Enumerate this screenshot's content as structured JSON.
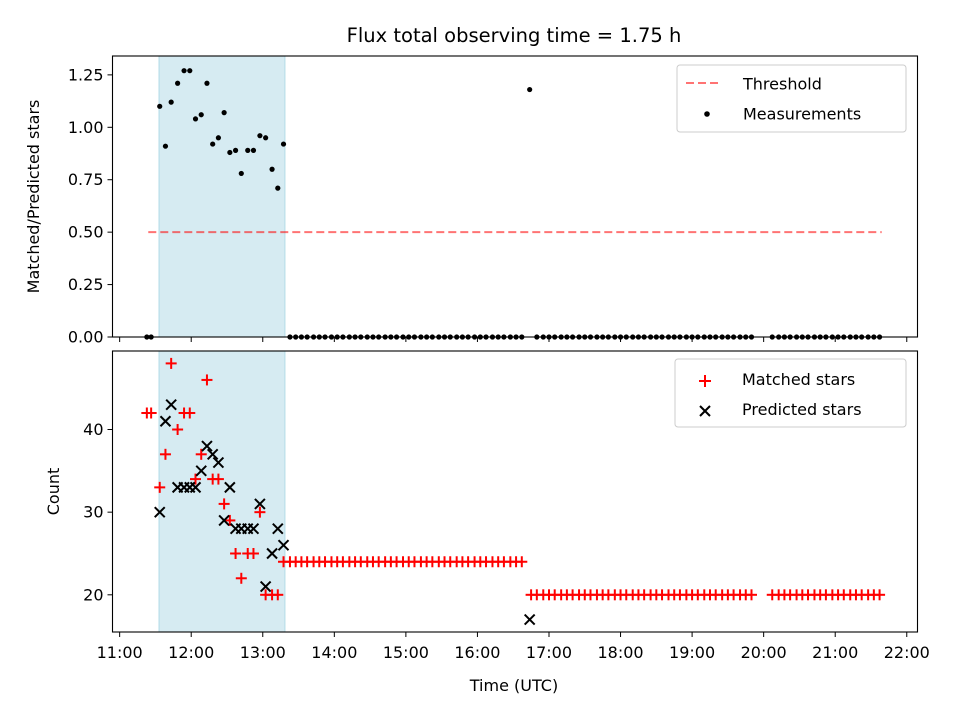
{
  "title": "Flux total observing time = 1.75 h",
  "colors": {
    "shade": "#add8e6",
    "threshold": "#ff0000",
    "matched": "#ff0000",
    "predicted": "#000000",
    "measure": "#000000"
  },
  "chart_data": [
    {
      "type": "scatter",
      "name": "ratio",
      "ylabel": "Matched/Predicted stars",
      "xlim": [
        10.9,
        22.15
      ],
      "ylim": [
        0,
        1.34
      ],
      "yticks": [
        0.0,
        0.25,
        0.5,
        0.75,
        1.0,
        1.25
      ],
      "ytick_labels": [
        "0.00",
        "0.25",
        "0.50",
        "0.75",
        "1.00",
        "1.25"
      ],
      "shaded_span": [
        11.55,
        13.31
      ],
      "threshold": {
        "label": "Threshold",
        "y": 0.5,
        "x": [
          11.4,
          21.65
        ]
      },
      "legend": [
        "Threshold",
        "Measurements"
      ],
      "legend_loc": "upper right",
      "series": [
        {
          "name": "Measurements",
          "points": [
            [
              11.38,
              0
            ],
            [
              11.44,
              0
            ],
            [
              11.56,
              1.1
            ],
            [
              11.64,
              0.91
            ],
            [
              11.72,
              1.12
            ],
            [
              11.81,
              1.21
            ],
            [
              11.9,
              1.27
            ],
            [
              11.98,
              1.27
            ],
            [
              12.06,
              1.04
            ],
            [
              12.14,
              1.06
            ],
            [
              12.22,
              1.21
            ],
            [
              12.3,
              0.92
            ],
            [
              12.38,
              0.95
            ],
            [
              12.46,
              1.07
            ],
            [
              12.54,
              0.88
            ],
            [
              12.62,
              0.89
            ],
            [
              12.7,
              0.78
            ],
            [
              12.79,
              0.89
            ],
            [
              12.87,
              0.89
            ],
            [
              12.96,
              0.96
            ],
            [
              13.04,
              0.95
            ],
            [
              13.13,
              0.8
            ],
            [
              13.21,
              0.71
            ],
            [
              13.29,
              0.92
            ],
            [
              13.38,
              0
            ],
            [
              13.46,
              0
            ],
            [
              13.54,
              0
            ],
            [
              13.62,
              0
            ],
            [
              13.71,
              0
            ],
            [
              13.79,
              0
            ],
            [
              13.87,
              0
            ],
            [
              13.96,
              0
            ],
            [
              14.04,
              0
            ],
            [
              14.12,
              0
            ],
            [
              14.21,
              0
            ],
            [
              14.29,
              0
            ],
            [
              14.37,
              0
            ],
            [
              14.46,
              0
            ],
            [
              14.54,
              0
            ],
            [
              14.62,
              0
            ],
            [
              14.71,
              0
            ],
            [
              14.79,
              0
            ],
            [
              14.87,
              0
            ],
            [
              14.96,
              0
            ],
            [
              15.04,
              0
            ],
            [
              15.12,
              0
            ],
            [
              15.21,
              0
            ],
            [
              15.29,
              0
            ],
            [
              15.37,
              0
            ],
            [
              15.46,
              0
            ],
            [
              15.54,
              0
            ],
            [
              15.62,
              0
            ],
            [
              15.71,
              0
            ],
            [
              15.79,
              0
            ],
            [
              15.87,
              0
            ],
            [
              15.96,
              0
            ],
            [
              16.04,
              0
            ],
            [
              16.12,
              0
            ],
            [
              16.21,
              0
            ],
            [
              16.29,
              0
            ],
            [
              16.37,
              0
            ],
            [
              16.46,
              0
            ],
            [
              16.54,
              0
            ],
            [
              16.62,
              0
            ],
            [
              16.73,
              1.18
            ],
            [
              16.83,
              0
            ],
            [
              16.92,
              0
            ],
            [
              17.0,
              0
            ],
            [
              17.08,
              0
            ],
            [
              17.17,
              0
            ],
            [
              17.25,
              0
            ],
            [
              17.33,
              0
            ],
            [
              17.42,
              0
            ],
            [
              17.5,
              0
            ],
            [
              17.58,
              0
            ],
            [
              17.67,
              0
            ],
            [
              17.75,
              0
            ],
            [
              17.83,
              0
            ],
            [
              17.92,
              0
            ],
            [
              18.0,
              0
            ],
            [
              18.08,
              0
            ],
            [
              18.17,
              0
            ],
            [
              18.25,
              0
            ],
            [
              18.33,
              0
            ],
            [
              18.42,
              0
            ],
            [
              18.5,
              0
            ],
            [
              18.58,
              0
            ],
            [
              18.67,
              0
            ],
            [
              18.75,
              0
            ],
            [
              18.83,
              0
            ],
            [
              18.92,
              0
            ],
            [
              19.0,
              0
            ],
            [
              19.08,
              0
            ],
            [
              19.17,
              0
            ],
            [
              19.25,
              0
            ],
            [
              19.33,
              0
            ],
            [
              19.42,
              0
            ],
            [
              19.5,
              0
            ],
            [
              19.58,
              0
            ],
            [
              19.67,
              0
            ],
            [
              19.75,
              0
            ],
            [
              19.83,
              0
            ],
            [
              20.12,
              0
            ],
            [
              20.21,
              0
            ],
            [
              20.29,
              0
            ],
            [
              20.37,
              0
            ],
            [
              20.46,
              0
            ],
            [
              20.54,
              0
            ],
            [
              20.62,
              0
            ],
            [
              20.71,
              0
            ],
            [
              20.79,
              0
            ],
            [
              20.87,
              0
            ],
            [
              20.96,
              0
            ],
            [
              21.04,
              0
            ],
            [
              21.12,
              0
            ],
            [
              21.21,
              0
            ],
            [
              21.29,
              0
            ],
            [
              21.37,
              0
            ],
            [
              21.46,
              0
            ],
            [
              21.54,
              0
            ],
            [
              21.62,
              0
            ]
          ]
        }
      ]
    },
    {
      "type": "scatter",
      "name": "counts",
      "xlabel": "Time (UTC)",
      "ylabel": "Count",
      "xlim": [
        10.9,
        22.15
      ],
      "ylim": [
        15.5,
        49.5
      ],
      "xticks": [
        11,
        12,
        13,
        14,
        15,
        16,
        17,
        18,
        19,
        20,
        21,
        22
      ],
      "xtick_labels": [
        "11:00",
        "12:00",
        "13:00",
        "14:00",
        "15:00",
        "16:00",
        "17:00",
        "18:00",
        "19:00",
        "20:00",
        "21:00",
        "22:00"
      ],
      "yticks": [
        20,
        30,
        40
      ],
      "ytick_labels": [
        "20",
        "30",
        "40"
      ],
      "shaded_span": [
        11.55,
        13.31
      ],
      "legend": [
        "Matched stars",
        "Predicted stars"
      ],
      "legend_loc": "upper right",
      "series": [
        {
          "name": "Matched stars",
          "marker": "+",
          "points": [
            [
              11.38,
              42
            ],
            [
              11.44,
              42
            ],
            [
              11.56,
              33
            ],
            [
              11.64,
              37
            ],
            [
              11.72,
              48
            ],
            [
              11.81,
              40
            ],
            [
              11.9,
              42
            ],
            [
              11.98,
              42
            ],
            [
              12.06,
              34
            ],
            [
              12.14,
              37
            ],
            [
              12.22,
              46
            ],
            [
              12.3,
              34
            ],
            [
              12.38,
              34
            ],
            [
              12.46,
              31
            ],
            [
              12.54,
              29
            ],
            [
              12.62,
              25
            ],
            [
              12.7,
              22
            ],
            [
              12.79,
              25
            ],
            [
              12.87,
              25
            ],
            [
              12.96,
              30
            ],
            [
              13.04,
              20
            ],
            [
              13.13,
              20
            ],
            [
              13.21,
              20
            ],
            [
              13.29,
              24
            ],
            [
              13.38,
              24
            ],
            [
              13.46,
              24
            ],
            [
              13.54,
              24
            ],
            [
              13.62,
              24
            ],
            [
              13.71,
              24
            ],
            [
              13.79,
              24
            ],
            [
              13.87,
              24
            ],
            [
              13.96,
              24
            ],
            [
              14.04,
              24
            ],
            [
              14.12,
              24
            ],
            [
              14.21,
              24
            ],
            [
              14.29,
              24
            ],
            [
              14.37,
              24
            ],
            [
              14.46,
              24
            ],
            [
              14.54,
              24
            ],
            [
              14.62,
              24
            ],
            [
              14.71,
              24
            ],
            [
              14.79,
              24
            ],
            [
              14.87,
              24
            ],
            [
              14.96,
              24
            ],
            [
              15.04,
              24
            ],
            [
              15.12,
              24
            ],
            [
              15.21,
              24
            ],
            [
              15.29,
              24
            ],
            [
              15.37,
              24
            ],
            [
              15.46,
              24
            ],
            [
              15.54,
              24
            ],
            [
              15.62,
              24
            ],
            [
              15.71,
              24
            ],
            [
              15.79,
              24
            ],
            [
              15.87,
              24
            ],
            [
              15.96,
              24
            ],
            [
              16.04,
              24
            ],
            [
              16.12,
              24
            ],
            [
              16.21,
              24
            ],
            [
              16.29,
              24
            ],
            [
              16.37,
              24
            ],
            [
              16.46,
              24
            ],
            [
              16.54,
              24
            ],
            [
              16.62,
              24
            ],
            [
              16.75,
              20
            ],
            [
              16.83,
              20
            ],
            [
              16.92,
              20
            ],
            [
              17.0,
              20
            ],
            [
              17.08,
              20
            ],
            [
              17.17,
              20
            ],
            [
              17.25,
              20
            ],
            [
              17.33,
              20
            ],
            [
              17.42,
              20
            ],
            [
              17.5,
              20
            ],
            [
              17.58,
              20
            ],
            [
              17.67,
              20
            ],
            [
              17.75,
              20
            ],
            [
              17.83,
              20
            ],
            [
              17.92,
              20
            ],
            [
              18.0,
              20
            ],
            [
              18.08,
              20
            ],
            [
              18.17,
              20
            ],
            [
              18.25,
              20
            ],
            [
              18.33,
              20
            ],
            [
              18.42,
              20
            ],
            [
              18.5,
              20
            ],
            [
              18.58,
              20
            ],
            [
              18.67,
              20
            ],
            [
              18.75,
              20
            ],
            [
              18.83,
              20
            ],
            [
              18.92,
              20
            ],
            [
              19.0,
              20
            ],
            [
              19.08,
              20
            ],
            [
              19.17,
              20
            ],
            [
              19.25,
              20
            ],
            [
              19.33,
              20
            ],
            [
              19.42,
              20
            ],
            [
              19.5,
              20
            ],
            [
              19.58,
              20
            ],
            [
              19.67,
              20
            ],
            [
              19.75,
              20
            ],
            [
              19.83,
              20
            ],
            [
              20.12,
              20
            ],
            [
              20.21,
              20
            ],
            [
              20.29,
              20
            ],
            [
              20.37,
              20
            ],
            [
              20.46,
              20
            ],
            [
              20.54,
              20
            ],
            [
              20.62,
              20
            ],
            [
              20.71,
              20
            ],
            [
              20.79,
              20
            ],
            [
              20.87,
              20
            ],
            [
              20.96,
              20
            ],
            [
              21.04,
              20
            ],
            [
              21.12,
              20
            ],
            [
              21.21,
              20
            ],
            [
              21.29,
              20
            ],
            [
              21.37,
              20
            ],
            [
              21.46,
              20
            ],
            [
              21.54,
              20
            ],
            [
              21.62,
              20
            ]
          ]
        },
        {
          "name": "Predicted stars",
          "marker": "x",
          "points": [
            [
              11.56,
              30
            ],
            [
              11.64,
              41
            ],
            [
              11.72,
              43
            ],
            [
              11.81,
              33
            ],
            [
              11.9,
              33
            ],
            [
              11.98,
              33
            ],
            [
              12.06,
              33
            ],
            [
              12.14,
              35
            ],
            [
              12.22,
              38
            ],
            [
              12.3,
              37
            ],
            [
              12.38,
              36
            ],
            [
              12.46,
              29
            ],
            [
              12.54,
              33
            ],
            [
              12.62,
              28
            ],
            [
              12.7,
              28
            ],
            [
              12.79,
              28
            ],
            [
              12.87,
              28
            ],
            [
              12.96,
              31
            ],
            [
              13.04,
              21
            ],
            [
              13.13,
              25
            ],
            [
              13.21,
              28
            ],
            [
              13.29,
              26
            ],
            [
              16.73,
              17
            ]
          ]
        }
      ]
    }
  ]
}
